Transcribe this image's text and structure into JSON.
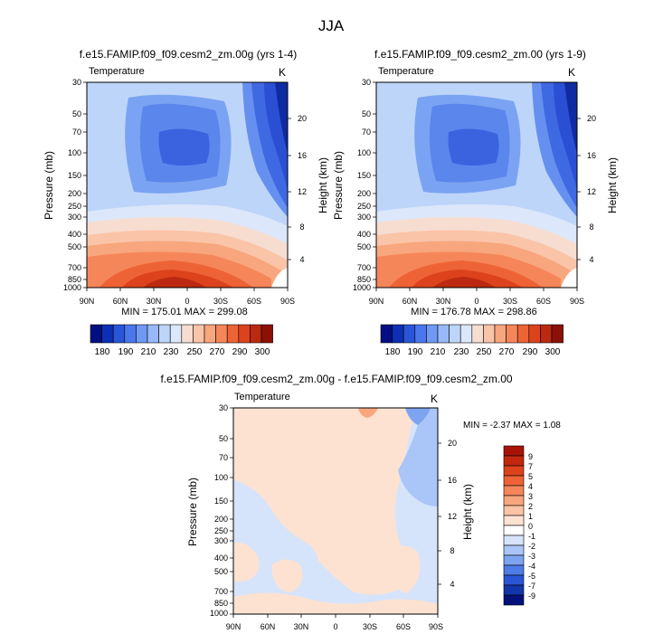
{
  "figure_title": "JJA",
  "chart_data": [
    {
      "type": "heatmap",
      "title": "f.e15.FAMIP.f09_f09.cesm2_zm.00g (yrs 1-4)",
      "left_label": "Temperature",
      "right_label": "K",
      "ylabel": "Pressure (mb)",
      "ylabel_right": "Height (km)",
      "x_ticks": [
        "90N",
        "60N",
        "30N",
        "0",
        "30S",
        "60S",
        "90S"
      ],
      "y_ticks": [
        "30",
        "50",
        "70",
        "100",
        "150",
        "200",
        "250",
        "300",
        "400",
        "500",
        "700",
        "850",
        "1000"
      ],
      "y_ticks_right": [
        "20",
        "16",
        "12",
        "8",
        "4"
      ],
      "stats": "MIN = 175.01   MAX = 299.08",
      "colorbar": {
        "labels": [
          "180",
          "190",
          "210",
          "230",
          "250",
          "270",
          "290",
          "300"
        ],
        "colors": [
          "#040e84",
          "#0c2fb4",
          "#2a55d8",
          "#4a77ec",
          "#6f99f4",
          "#98b9f8",
          "#bed5fa",
          "#dbe8fc",
          "#f6ddd0",
          "#fac4a8",
          "#f8a67d",
          "#f5865a",
          "#ee6336",
          "#dc431c",
          "#bb2a10",
          "#8c1006"
        ]
      }
    },
    {
      "type": "heatmap",
      "title": "f.e15.FAMIP.f09_f09.cesm2_zm.00 (yrs 1-9)",
      "left_label": "Temperature",
      "right_label": "K",
      "ylabel": "Pressure (mb)",
      "ylabel_right": "Height (km)",
      "x_ticks": [
        "90N",
        "60N",
        "30N",
        "0",
        "30S",
        "60S",
        "90S"
      ],
      "y_ticks": [
        "30",
        "50",
        "70",
        "100",
        "150",
        "200",
        "250",
        "300",
        "400",
        "500",
        "700",
        "850",
        "1000"
      ],
      "y_ticks_right": [
        "20",
        "16",
        "12",
        "8",
        "4"
      ],
      "stats": "MIN = 176.78   MAX = 298.86",
      "colorbar": {
        "labels": [
          "180",
          "190",
          "210",
          "230",
          "250",
          "270",
          "290",
          "300"
        ],
        "colors": [
          "#040e84",
          "#0c2fb4",
          "#2a55d8",
          "#4a77ec",
          "#6f99f4",
          "#98b9f8",
          "#bed5fa",
          "#dbe8fc",
          "#f6ddd0",
          "#fac4a8",
          "#f8a67d",
          "#f5865a",
          "#ee6336",
          "#dc431c",
          "#bb2a10",
          "#8c1006"
        ]
      }
    },
    {
      "type": "heatmap",
      "title": "f.e15.FAMIP.f09_f09.cesm2_zm.00g - f.e15.FAMIP.f09_f09.cesm2_zm.00",
      "left_label": "Temperature",
      "right_label": "K",
      "ylabel": "Pressure (mb)",
      "ylabel_right": "Height (km)",
      "x_ticks": [
        "90N",
        "60N",
        "30N",
        "0",
        "30S",
        "60S",
        "90S"
      ],
      "y_ticks": [
        "30",
        "50",
        "70",
        "100",
        "150",
        "200",
        "250",
        "300",
        "400",
        "500",
        "700",
        "850",
        "1000"
      ],
      "y_ticks_right": [
        "20",
        "16",
        "12",
        "8",
        "4"
      ],
      "stats": "MIN = -2.37   MAX =  1.08",
      "colorbar": {
        "labels": [
          "9",
          "7",
          "5",
          "4",
          "3",
          "2",
          "1",
          "0",
          "-1",
          "-2",
          "-3",
          "-4",
          "-5",
          "-7",
          "-9"
        ],
        "colors": [
          "#a81308",
          "#c2280e",
          "#dc431c",
          "#ee6336",
          "#f5865a",
          "#f8a67d",
          "#fac4a8",
          "#fde2d2",
          "#ffffff",
          "#d6e4fb",
          "#aac5f7",
          "#7ea4f1",
          "#4f7ce6",
          "#2a55d4",
          "#1236aa",
          "#03117a"
        ]
      }
    }
  ]
}
